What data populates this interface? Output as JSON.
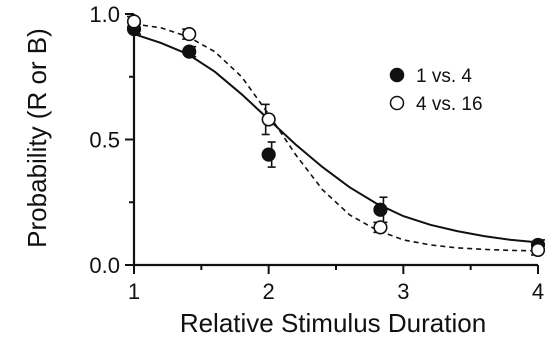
{
  "chart_data": {
    "type": "scatter",
    "title": "",
    "xlabel": "Relative Stimulus Duration",
    "ylabel": "Probability (R or B)",
    "xlim": [
      1,
      4
    ],
    "ylim": [
      0,
      1
    ],
    "x_ticks": [
      "1",
      "2",
      "3",
      "4"
    ],
    "y_ticks": [
      "0.0",
      "0.5",
      "1.0"
    ],
    "legend_position": "upper-right",
    "grid": false,
    "series": [
      {
        "name": "1 vs. 4",
        "marker": "filled-circle",
        "line": "solid",
        "color": "#111111",
        "points": [
          {
            "x": 1.0,
            "y": 0.94,
            "err": 0.02
          },
          {
            "x": 1.41,
            "y": 0.85,
            "err": 0.02
          },
          {
            "x": 2.0,
            "y": 0.44,
            "err": 0.05
          },
          {
            "x": 2.83,
            "y": 0.22,
            "err": 0.05
          },
          {
            "x": 4.0,
            "y": 0.08,
            "err": 0.02
          }
        ],
        "fit": [
          {
            "x": 1.0,
            "y": 0.92
          },
          {
            "x": 1.2,
            "y": 0.885
          },
          {
            "x": 1.4,
            "y": 0.84
          },
          {
            "x": 1.6,
            "y": 0.77
          },
          {
            "x": 1.8,
            "y": 0.68
          },
          {
            "x": 2.0,
            "y": 0.58
          },
          {
            "x": 2.2,
            "y": 0.48
          },
          {
            "x": 2.4,
            "y": 0.39
          },
          {
            "x": 2.6,
            "y": 0.31
          },
          {
            "x": 2.8,
            "y": 0.245
          },
          {
            "x": 3.0,
            "y": 0.195
          },
          {
            "x": 3.2,
            "y": 0.16
          },
          {
            "x": 3.4,
            "y": 0.135
          },
          {
            "x": 3.6,
            "y": 0.115
          },
          {
            "x": 3.8,
            "y": 0.1
          },
          {
            "x": 4.0,
            "y": 0.09
          }
        ]
      },
      {
        "name": "4 vs. 16",
        "marker": "open-circle",
        "line": "dashed",
        "color": "#111111",
        "points": [
          {
            "x": 1.0,
            "y": 0.97,
            "err": 0.02
          },
          {
            "x": 1.41,
            "y": 0.92,
            "err": 0.02
          },
          {
            "x": 2.0,
            "y": 0.58,
            "err": 0.06
          },
          {
            "x": 2.83,
            "y": 0.15,
            "err": 0.02
          },
          {
            "x": 4.0,
            "y": 0.06,
            "err": 0.02
          }
        ],
        "fit": [
          {
            "x": 1.0,
            "y": 0.96
          },
          {
            "x": 1.2,
            "y": 0.945
          },
          {
            "x": 1.4,
            "y": 0.91
          },
          {
            "x": 1.6,
            "y": 0.85
          },
          {
            "x": 1.8,
            "y": 0.75
          },
          {
            "x": 2.0,
            "y": 0.6
          },
          {
            "x": 2.2,
            "y": 0.44
          },
          {
            "x": 2.4,
            "y": 0.3
          },
          {
            "x": 2.6,
            "y": 0.2
          },
          {
            "x": 2.8,
            "y": 0.14
          },
          {
            "x": 3.0,
            "y": 0.1
          },
          {
            "x": 3.2,
            "y": 0.08
          },
          {
            "x": 3.4,
            "y": 0.068
          },
          {
            "x": 3.6,
            "y": 0.062
          },
          {
            "x": 3.8,
            "y": 0.058
          },
          {
            "x": 4.0,
            "y": 0.056
          }
        ]
      }
    ]
  }
}
